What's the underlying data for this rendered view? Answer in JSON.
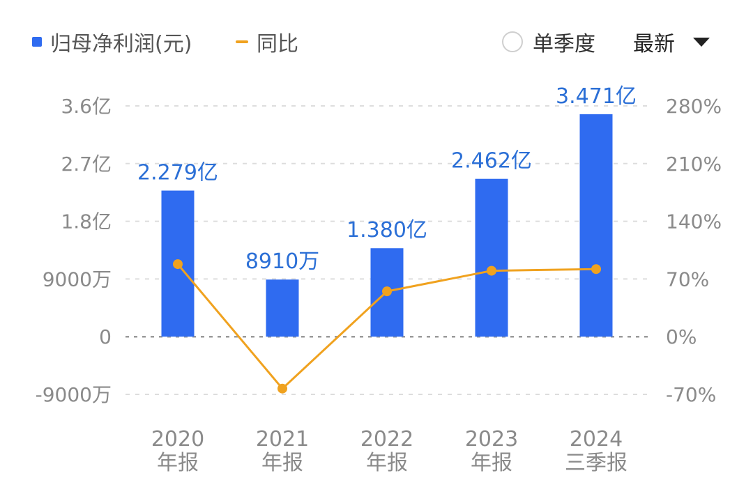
{
  "legend": {
    "bar_label": "归母净利润(元)",
    "line_label": "同比"
  },
  "controls": {
    "single_quarter_label": "单季度",
    "sort_label": "最新"
  },
  "colors": {
    "bar": "#2f6bf0",
    "line": "#f0a21f",
    "data_label": "#2b6fd6",
    "tick": "#8a8a8a",
    "grid": "#dddddd"
  },
  "chart_data": {
    "type": "bar",
    "categories": [
      [
        "2020",
        "年报"
      ],
      [
        "2021",
        "年报"
      ],
      [
        "2022",
        "年报"
      ],
      [
        "2023",
        "年报"
      ],
      [
        "2024",
        "三季报"
      ]
    ],
    "series": [
      {
        "name": "归母净利润(元)",
        "type": "bar",
        "axis": "left",
        "values": [
          227900000,
          89100000,
          138000000,
          246200000,
          347100000
        ],
        "data_labels": [
          "2.279亿",
          "8910万",
          "1.380亿",
          "2.462亿",
          "3.471亿"
        ]
      },
      {
        "name": "同比",
        "type": "line",
        "axis": "right",
        "values": [
          88,
          -63,
          55,
          80,
          82
        ]
      }
    ],
    "y_left": {
      "ylim": [
        -90000000,
        360000000
      ],
      "ticks": [
        360000000,
        270000000,
        180000000,
        90000000,
        0,
        -90000000
      ],
      "tick_labels": [
        "3.6亿",
        "2.7亿",
        "1.8亿",
        "9000万",
        "0",
        "-9000万"
      ]
    },
    "y_right": {
      "ylim": [
        -70,
        280
      ],
      "ticks": [
        280,
        210,
        140,
        70,
        0,
        -70
      ],
      "tick_labels": [
        "280%",
        "210%",
        "140%",
        "70%",
        "0%",
        "-70%"
      ]
    },
    "grid": true,
    "legend_position": "top-left"
  }
}
